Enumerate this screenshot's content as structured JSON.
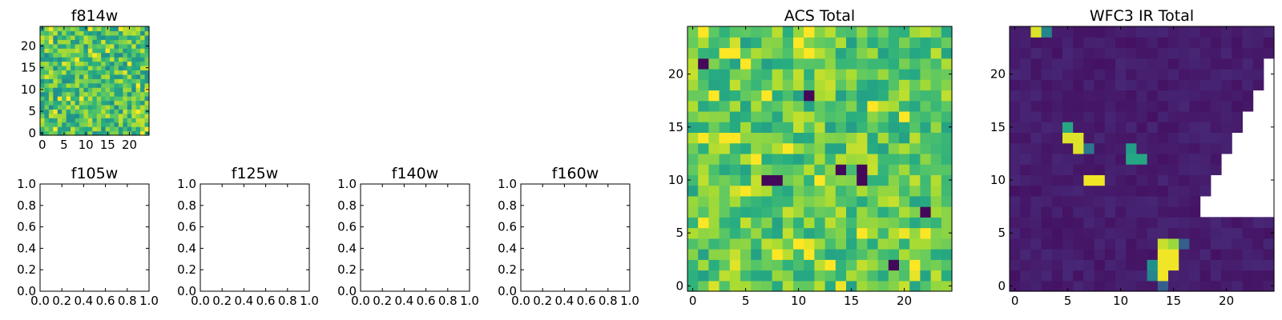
{
  "chart_data": [
    {
      "type": "heatmap",
      "title": "f814w",
      "grid_size": 25,
      "xlim": [
        -0.5,
        24.5
      ],
      "ylim": [
        -0.5,
        24.5
      ],
      "xticks": [
        0,
        5,
        10,
        15,
        20
      ],
      "yticks": [
        0,
        5,
        10,
        15,
        20
      ],
      "x_tick_labels": [
        "0",
        "5",
        "10",
        "15",
        "20"
      ],
      "y_tick_labels": [
        "0",
        "5",
        "10",
        "15",
        "20"
      ],
      "colormap": "viridis",
      "value_range": [
        0,
        1
      ],
      "baseline": 0.7,
      "spread": 0.22,
      "seed": 17,
      "dark_cells": []
    },
    {
      "type": "empty",
      "title": "f105w",
      "xlim": [
        0,
        1
      ],
      "ylim": [
        0,
        1
      ],
      "xticks": [
        0,
        0.2,
        0.4,
        0.6,
        0.8,
        1.0
      ],
      "yticks": [
        0,
        0.2,
        0.4,
        0.6,
        0.8,
        1.0
      ],
      "x_tick_labels": [
        "0.0",
        "0.2",
        "0.4",
        "0.6",
        "0.8",
        "1.0"
      ],
      "y_tick_labels": [
        "0.0",
        "0.2",
        "0.4",
        "0.6",
        "0.8",
        "1.0"
      ]
    },
    {
      "type": "empty",
      "title": "f125w",
      "xlim": [
        0,
        1
      ],
      "ylim": [
        0,
        1
      ],
      "xticks": [
        0,
        0.2,
        0.4,
        0.6,
        0.8,
        1.0
      ],
      "yticks": [
        0,
        0.2,
        0.4,
        0.6,
        0.8,
        1.0
      ],
      "x_tick_labels": [
        "0.0",
        "0.2",
        "0.4",
        "0.6",
        "0.8",
        "1.0"
      ],
      "y_tick_labels": [
        "0.0",
        "0.2",
        "0.4",
        "0.6",
        "0.8",
        "1.0"
      ]
    },
    {
      "type": "empty",
      "title": "f140w",
      "xlim": [
        0,
        1
      ],
      "ylim": [
        0,
        1
      ],
      "xticks": [
        0,
        0.2,
        0.4,
        0.6,
        0.8,
        1.0
      ],
      "yticks": [
        0,
        0.2,
        0.4,
        0.6,
        0.8,
        1.0
      ],
      "x_tick_labels": [
        "0.0",
        "0.2",
        "0.4",
        "0.6",
        "0.8",
        "1.0"
      ],
      "y_tick_labels": [
        "0.0",
        "0.2",
        "0.4",
        "0.6",
        "0.8",
        "1.0"
      ]
    },
    {
      "type": "empty",
      "title": "f160w",
      "xlim": [
        0,
        1
      ],
      "ylim": [
        0,
        1
      ],
      "xticks": [
        0,
        0.2,
        0.4,
        0.6,
        0.8,
        1.0
      ],
      "yticks": [
        0,
        0.2,
        0.4,
        0.6,
        0.8,
        1.0
      ],
      "x_tick_labels": [
        "0.0",
        "0.2",
        "0.4",
        "0.6",
        "0.8",
        "1.0"
      ],
      "y_tick_labels": [
        "0.0",
        "0.2",
        "0.4",
        "0.6",
        "0.8",
        "1.0"
      ]
    },
    {
      "type": "heatmap",
      "title": "ACS Total",
      "grid_size": 25,
      "xlim": [
        -0.5,
        24.5
      ],
      "ylim": [
        -0.5,
        24.5
      ],
      "xticks": [
        0,
        5,
        10,
        15,
        20
      ],
      "yticks": [
        0,
        5,
        10,
        15,
        20
      ],
      "x_tick_labels": [
        "0",
        "5",
        "10",
        "15",
        "20"
      ],
      "y_tick_labels": [
        "0",
        "5",
        "10",
        "15",
        "20"
      ],
      "colormap": "viridis",
      "value_range": [
        0,
        1
      ],
      "baseline": 0.74,
      "spread": 0.18,
      "seed": 42,
      "dark_cells": [
        [
          1,
          21
        ],
        [
          8,
          10
        ],
        [
          7,
          10
        ],
        [
          16,
          11
        ],
        [
          16,
          10
        ],
        [
          22,
          7
        ],
        [
          19,
          2
        ],
        [
          11,
          18
        ],
        [
          14,
          11
        ]
      ]
    },
    {
      "type": "heatmap",
      "title": "WFC3 IR Total",
      "grid_size": 25,
      "xlim": [
        -0.5,
        24.5
      ],
      "ylim": [
        -0.5,
        24.5
      ],
      "xticks": [
        0,
        5,
        10,
        15,
        20
      ],
      "yticks": [
        0,
        5,
        10,
        15,
        20
      ],
      "x_tick_labels": [
        "0",
        "5",
        "10",
        "15",
        "20"
      ],
      "y_tick_labels": [
        "0",
        "5",
        "10",
        "15",
        "20"
      ],
      "colormap": "viridis",
      "value_range": [
        0,
        1
      ],
      "background_level": 0.05,
      "masked_from_right_by_row": [
        0,
        0,
        0,
        0,
        0,
        0,
        0,
        7,
        7,
        6,
        6,
        5,
        5,
        4,
        4,
        3,
        3,
        2,
        2,
        1,
        1,
        1,
        0,
        0,
        0
      ],
      "bright_cells": [
        {
          "x": 2,
          "y": 24,
          "v": 0.95
        },
        {
          "x": 3,
          "y": 24,
          "v": 0.45
        },
        {
          "x": 5,
          "y": 15,
          "v": 0.6
        },
        {
          "x": 5,
          "y": 14,
          "v": 0.95
        },
        {
          "x": 6,
          "y": 14,
          "v": 0.95
        },
        {
          "x": 6,
          "y": 13,
          "v": 0.95
        },
        {
          "x": 7,
          "y": 13,
          "v": 0.4
        },
        {
          "x": 11,
          "y": 13,
          "v": 0.55
        },
        {
          "x": 11,
          "y": 12,
          "v": 0.6
        },
        {
          "x": 12,
          "y": 12,
          "v": 0.6
        },
        {
          "x": 7,
          "y": 10,
          "v": 0.98
        },
        {
          "x": 8,
          "y": 10,
          "v": 0.98
        },
        {
          "x": 14,
          "y": 4,
          "v": 0.92
        },
        {
          "x": 15,
          "y": 4,
          "v": 0.85
        },
        {
          "x": 16,
          "y": 4,
          "v": 0.3
        },
        {
          "x": 14,
          "y": 3,
          "v": 0.98
        },
        {
          "x": 15,
          "y": 3,
          "v": 0.98
        },
        {
          "x": 14,
          "y": 2,
          "v": 0.98
        },
        {
          "x": 15,
          "y": 2,
          "v": 0.98
        },
        {
          "x": 13,
          "y": 2,
          "v": 0.5
        },
        {
          "x": 14,
          "y": 1,
          "v": 0.98
        },
        {
          "x": 13,
          "y": 1,
          "v": 0.45
        },
        {
          "x": 14,
          "y": 0,
          "v": 0.3
        }
      ]
    }
  ]
}
